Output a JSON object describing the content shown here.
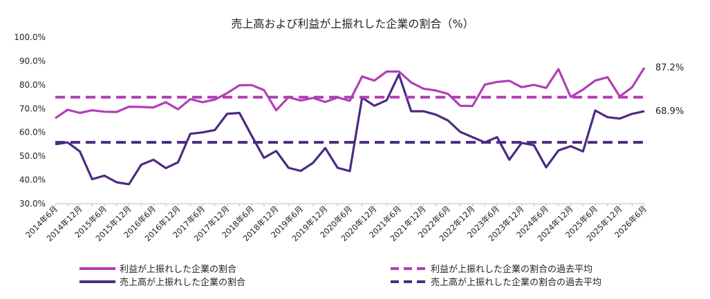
{
  "chart_data": {
    "type": "line",
    "title": "売上高および利益が上振れした企業の割合（%）",
    "ylim": [
      30,
      100
    ],
    "yticks": [
      "30.0%",
      "40.0%",
      "50.0%",
      "60.0%",
      "70.0%",
      "80.0%",
      "90.0%",
      "100.0%"
    ],
    "yticks_values": [
      30,
      40,
      50,
      60,
      70,
      80,
      90,
      100
    ],
    "categories": [
      "2014-06",
      "2014-09",
      "2014-12",
      "2015-03",
      "2015-06",
      "2015-09",
      "2015-12",
      "2016-03",
      "2016-06",
      "2016-09",
      "2016-12",
      "2017-03",
      "2017-06",
      "2017-09",
      "2017-12",
      "2018-03",
      "2018-06",
      "2018-09",
      "2018-12",
      "2019-03",
      "2019-06",
      "2019-09",
      "2019-12",
      "2020-03",
      "2020-06",
      "2020-09",
      "2020-12",
      "2021-03",
      "2021-06",
      "2021-09",
      "2021-12",
      "2022-03",
      "2022-06",
      "2022-09",
      "2022-12",
      "2023-03",
      "2023-06",
      "2023-09",
      "2023-12",
      "2024-03",
      "2024-06",
      "2024-09",
      "2024-12",
      "2025-03",
      "2025-06",
      "2025-09",
      "2025-12",
      "2026-03",
      "2026-06"
    ],
    "xtick_labels": [
      "2014年6月",
      "2014年12月",
      "2015年6月",
      "2015年12月",
      "2016年6月",
      "2016年12月",
      "2017年6月",
      "2017年12月",
      "2018年6月",
      "2018年12月",
      "2019年6月",
      "2019年12月",
      "2020年6月",
      "2020年12月",
      "2021年6月",
      "2021年12月",
      "2022年6月",
      "2022年12月",
      "2023年6月",
      "2023年12月",
      "2024年6月",
      "2024年12月",
      "2025年6月",
      "2025年12月",
      "2026年6月"
    ],
    "series": [
      {
        "name": "利益が上振れした企業の割合",
        "color": "#b03fb5",
        "style": "solid",
        "values": [
          66.0,
          69.5,
          68.2,
          69.3,
          68.7,
          68.6,
          70.8,
          70.7,
          70.5,
          72.7,
          69.7,
          74.0,
          72.7,
          73.8,
          76.5,
          79.8,
          79.9,
          77.8,
          69.3,
          74.8,
          73.4,
          74.5,
          72.8,
          74.7,
          73.3,
          83.5,
          81.8,
          85.6,
          85.6,
          81.0,
          78.4,
          77.6,
          76.2,
          71.2,
          71.1,
          80.1,
          81.2,
          81.7,
          79.0,
          80.0,
          78.7,
          86.6,
          74.9,
          78.0,
          81.8,
          83.2,
          75.1,
          79.0,
          87.2
        ],
        "end_label": "87.2%"
      },
      {
        "name": "売上高が上振れした企業の割合",
        "color": "#4b2a84",
        "style": "solid",
        "values": [
          55.0,
          55.8,
          52.0,
          40.3,
          41.8,
          39.0,
          38.2,
          46.4,
          48.5,
          45.0,
          47.4,
          59.4,
          60.0,
          61.0,
          67.8,
          68.2,
          58.6,
          49.3,
          52.2,
          45.1,
          43.8,
          47.2,
          53.4,
          45.1,
          43.7,
          74.6,
          71.2,
          73.5,
          84.4,
          68.9,
          68.9,
          67.5,
          65.0,
          60.2,
          58.0,
          55.8,
          58.0,
          48.5,
          55.6,
          54.6,
          45.3,
          52.4,
          54.2,
          52.0,
          69.2,
          66.4,
          65.8,
          67.8,
          68.9
        ],
        "end_label": "68.9%"
      },
      {
        "name": "利益が上振れした企業の割合の過去平均",
        "color": "#b03fb5",
        "style": "dashed",
        "value": 74.8
      },
      {
        "name": "売上高が上振れした企業の割合の過去平均",
        "color": "#4b2a84",
        "style": "dashed",
        "value": 55.8
      }
    ],
    "grid": false,
    "legend_position": "bottom"
  }
}
